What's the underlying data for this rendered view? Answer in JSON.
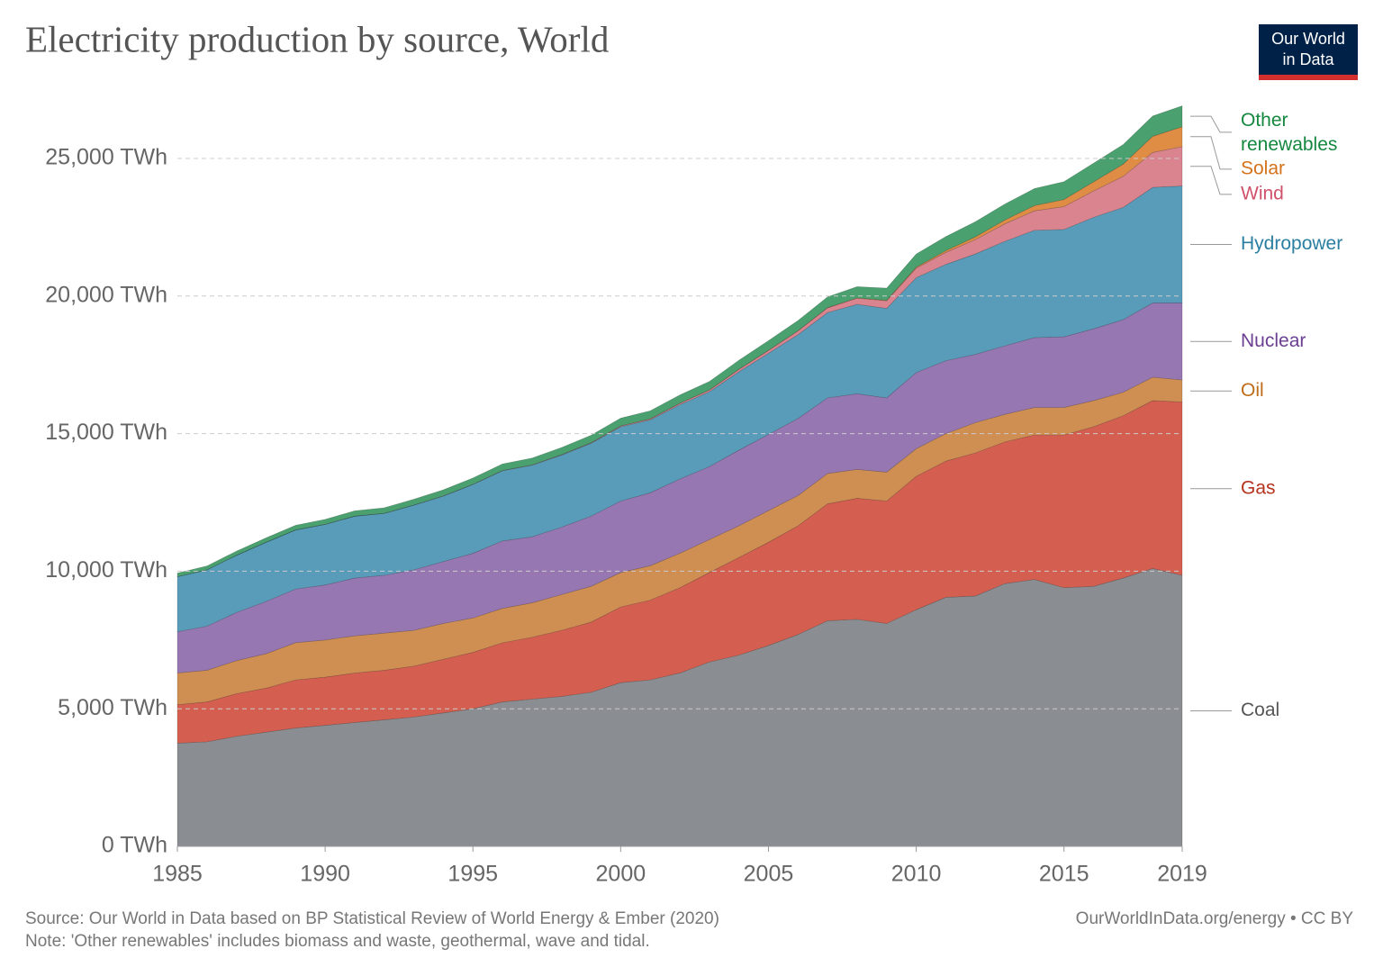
{
  "chart_data": {
    "type": "stacked_area",
    "title": "Electricity production by source, World",
    "logo": [
      "Our World",
      "in Data"
    ],
    "source": "Source: Our World in Data based on BP Statistical Review of World Energy & Ember (2020)",
    "note": "Note: 'Other renewables' includes biomass and waste, geothermal, wave and tidal.",
    "url": "OurWorldInData.org/energy • CC BY",
    "x": [
      1985,
      1986,
      1987,
      1988,
      1989,
      1990,
      1991,
      1992,
      1993,
      1994,
      1995,
      1996,
      1997,
      1998,
      1999,
      2000,
      2001,
      2002,
      2003,
      2004,
      2005,
      2006,
      2007,
      2008,
      2009,
      2010,
      2011,
      2012,
      2013,
      2014,
      2015,
      2016,
      2017,
      2018,
      2019
    ],
    "xlim": [
      1985,
      2019
    ],
    "xticks": [
      1985,
      1990,
      1995,
      2000,
      2005,
      2010,
      2015,
      2019
    ],
    "ylim": [
      0,
      27000
    ],
    "yticks": [
      {
        "value": 0,
        "label": "0 TWh"
      },
      {
        "value": 5000,
        "label": "5,000 TWh"
      },
      {
        "value": 10000,
        "label": "10,000 TWh"
      },
      {
        "value": 15000,
        "label": "15,000 TWh"
      },
      {
        "value": 20000,
        "label": "20,000 TWh"
      },
      {
        "value": 25000,
        "label": "25,000 TWh"
      }
    ],
    "grid": true,
    "series": [
      {
        "name": "Coal",
        "color": "#8a8d91",
        "label_color": "#555555",
        "values": [
          3750,
          3800,
          4000,
          4150,
          4300,
          4400,
          4500,
          4600,
          4700,
          4850,
          5000,
          5250,
          5350,
          5450,
          5600,
          5950,
          6050,
          6300,
          6700,
          6950,
          7300,
          7700,
          8200,
          8250,
          8100,
          8600,
          9050,
          9100,
          9550,
          9700,
          9400,
          9450,
          9750,
          10100,
          9850
        ]
      },
      {
        "name": "Gas",
        "color": "#d45f50",
        "label_color": "#b5321e",
        "values": [
          1400,
          1450,
          1550,
          1600,
          1750,
          1750,
          1800,
          1800,
          1850,
          1950,
          2050,
          2150,
          2250,
          2400,
          2550,
          2750,
          2900,
          3100,
          3250,
          3550,
          3750,
          3950,
          4250,
          4400,
          4450,
          4850,
          4950,
          5200,
          5150,
          5250,
          5550,
          5800,
          5900,
          6100,
          6300
        ]
      },
      {
        "name": "Oil",
        "color": "#cf8f53",
        "label_color": "#bf6b19",
        "values": [
          1150,
          1150,
          1200,
          1250,
          1350,
          1350,
          1350,
          1350,
          1300,
          1300,
          1250,
          1250,
          1250,
          1300,
          1300,
          1250,
          1250,
          1250,
          1200,
          1150,
          1150,
          1100,
          1100,
          1050,
          1050,
          1000,
          1000,
          1100,
          1000,
          1000,
          1000,
          950,
          850,
          850,
          800
        ]
      },
      {
        "name": "Nuclear",
        "color": "#9777b1",
        "label_color": "#6b3e91",
        "values": [
          1500,
          1600,
          1750,
          1900,
          1950,
          2000,
          2100,
          2100,
          2200,
          2250,
          2350,
          2450,
          2400,
          2450,
          2550,
          2600,
          2650,
          2700,
          2650,
          2750,
          2770,
          2800,
          2750,
          2750,
          2700,
          2770,
          2650,
          2480,
          2490,
          2540,
          2570,
          2610,
          2640,
          2700,
          2800
        ]
      },
      {
        "name": "Hydropower",
        "color": "#589cb9",
        "label_color": "#2a7ea1",
        "values": [
          2000,
          2050,
          2080,
          2150,
          2150,
          2200,
          2250,
          2250,
          2350,
          2380,
          2500,
          2550,
          2600,
          2620,
          2650,
          2700,
          2650,
          2700,
          2720,
          2850,
          2950,
          3050,
          3100,
          3250,
          3250,
          3450,
          3500,
          3650,
          3800,
          3900,
          3900,
          4050,
          4080,
          4200,
          4250
        ]
      },
      {
        "name": "Wind",
        "color": "#d9848f",
        "label_color": "#d0516a",
        "values": [
          0,
          0,
          0,
          0,
          0,
          4,
          4,
          5,
          6,
          7,
          8,
          9,
          12,
          16,
          21,
          31,
          38,
          52,
          63,
          85,
          104,
          133,
          171,
          220,
          276,
          346,
          437,
          521,
          636,
          706,
          831,
          959,
          1128,
          1270,
          1430
        ]
      },
      {
        "name": "Solar",
        "color": "#df8d45",
        "label_color": "#d4731b",
        "values": [
          0,
          0,
          0,
          0,
          0,
          0,
          0,
          0,
          0,
          0,
          0,
          0,
          0,
          0,
          0,
          1,
          1,
          2,
          2,
          3,
          4,
          6,
          8,
          12,
          20,
          32,
          64,
          100,
          136,
          192,
          256,
          330,
          444,
          584,
          724
        ]
      },
      {
        "name": "Other renewables",
        "color": "#4aa06e",
        "label_color": "#14873f",
        "values": [
          130,
          140,
          150,
          160,
          170,
          180,
          190,
          200,
          210,
          220,
          230,
          240,
          250,
          260,
          270,
          280,
          290,
          300,
          310,
          330,
          350,
          370,
          390,
          410,
          440,
          480,
          510,
          550,
          580,
          620,
          650,
          680,
          710,
          740,
          760
        ]
      }
    ]
  }
}
